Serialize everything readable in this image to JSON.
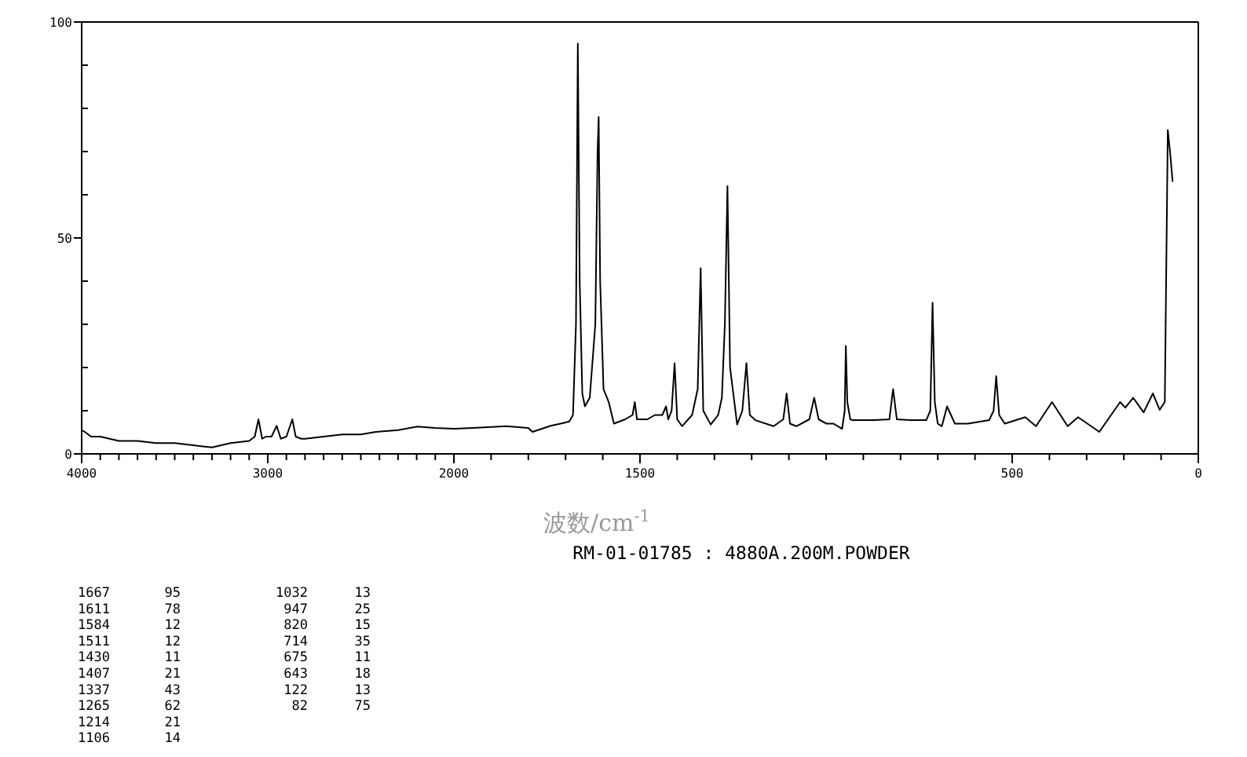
{
  "chart_data": [
    {
      "type": "line",
      "xlabel": "波数/cm$^{-1}$",
      "annotations": [
        "RM-01-01785 : 4880A.200M.POWDER",
        "1667 95",
        "1611 78",
        "1584 12",
        "1511 12",
        "1430 11",
        "1407 21",
        "1337 43",
        "1265 62",
        "1214 21",
        "1106 14",
        "1032 13",
        "947 25",
        "820 15",
        "714 35",
        "675 11",
        "643 18",
        "122 13",
        "82 75"
      ],
      "xlim": [
        4000,
        2000
      ],
      "ylim": [
        0,
        100
      ],
      "xticks": [
        {
          "value": 4000,
          "label": "4000"
        },
        {
          "value": 3900,
          "label": null
        },
        {
          "value": 3800,
          "label": null
        },
        {
          "value": 3700,
          "label": null
        },
        {
          "value": 3600,
          "label": null
        },
        {
          "value": 3500,
          "label": null
        },
        {
          "value": 3400,
          "label": null
        },
        {
          "value": 3300,
          "label": null
        },
        {
          "value": 3200,
          "label": null
        },
        {
          "value": 3100,
          "label": null
        },
        {
          "value": 3000,
          "label": "3000"
        },
        {
          "value": 2900,
          "label": null
        },
        {
          "value": 2800,
          "label": null
        },
        {
          "value": 2700,
          "label": null
        },
        {
          "value": 2600,
          "label": null
        },
        {
          "value": 2500,
          "label": null
        },
        {
          "value": 2400,
          "label": null
        },
        {
          "value": 2300,
          "label": null
        },
        {
          "value": 2200,
          "label": null
        },
        {
          "value": 2100,
          "label": null
        },
        {
          "value": 2000,
          "label": "2000"
        }
      ],
      "yticks": [
        0,
        {
          "value": 10,
          "label": null
        },
        {
          "value": 20,
          "label": null
        },
        {
          "value": 30,
          "label": null
        },
        {
          "value": 40,
          "label": null
        },
        50,
        {
          "value": 60,
          "label": null
        },
        {
          "value": 70,
          "label": null
        },
        {
          "value": 80,
          "label": null
        },
        {
          "value": 90,
          "label": null
        },
        100
      ],
      "marker": "none",
      "line_style": "solid",
      "series": [
        {
          "color": "#000000",
          "x": [
            4000,
            3980,
            3950,
            3900,
            3800,
            3700,
            3600,
            3500,
            3400,
            3300,
            3250,
            3200,
            3100,
            3070,
            3050,
            3030,
            3010,
            2980,
            2952,
            2930,
            2900,
            2868,
            2850,
            2820,
            2800,
            2700,
            2600,
            2500,
            2420,
            2300,
            2196,
            2100,
            2000
          ],
          "values": [
            5.5,
            5,
            4,
            4,
            3,
            3,
            2.5,
            2.5,
            2,
            1.5,
            2,
            2.5,
            3,
            4,
            8,
            3.5,
            4,
            4,
            6.5,
            3.5,
            4,
            8,
            4,
            3.5,
            3.5,
            4,
            4.5,
            4.5,
            5.1,
            5.5,
            6.3,
            6,
            5.8
          ]
        }
      ]
    },
    {
      "type": "line",
      "xlim": [
        2000,
        0
      ],
      "ylim": [
        0,
        100
      ],
      "tick_labels": "x",
      "xticks": [
        {
          "value": 2000,
          "label": null
        },
        {
          "value": 1900,
          "label": null
        },
        {
          "value": 1800,
          "label": null
        },
        {
          "value": 1700,
          "label": null
        },
        {
          "value": 1600,
          "label": null
        },
        {
          "value": 1500,
          "label": "1500"
        },
        {
          "value": 1400,
          "label": null
        },
        {
          "value": 1300,
          "label": null
        },
        {
          "value": 1200,
          "label": null
        },
        {
          "value": 1100,
          "label": null
        },
        {
          "value": 1000,
          "label": null
        },
        {
          "value": 900,
          "label": null
        },
        {
          "value": 800,
          "label": null
        },
        {
          "value": 700,
          "label": null
        },
        {
          "value": 600,
          "label": null
        },
        {
          "value": 500,
          "label": "500"
        },
        {
          "value": 400,
          "label": null
        },
        {
          "value": 300,
          "label": null
        },
        {
          "value": 200,
          "label": null
        },
        {
          "value": 100,
          "label": null
        },
        {
          "value": 0,
          "label": "0"
        }
      ],
      "marker": "none",
      "line_style": "solid",
      "series": [
        {
          "color": "#000000",
          "x": [
            2000,
            1950,
            1859,
            1800,
            1789,
            1740,
            1704,
            1690,
            1680,
            1672,
            1667,
            1662,
            1655,
            1648,
            1635,
            1620,
            1614,
            1611,
            1607,
            1598,
            1584,
            1570,
            1540,
            1520,
            1514,
            1508,
            1480,
            1460,
            1440,
            1430,
            1424,
            1415,
            1407,
            1400,
            1387,
            1360,
            1345,
            1337,
            1330,
            1310,
            1290,
            1280,
            1272,
            1265,
            1258,
            1239,
            1225,
            1214,
            1205,
            1190,
            1141,
            1115,
            1106,
            1097,
            1080,
            1045,
            1032,
            1020,
            999,
            980,
            957,
            950,
            947,
            943,
            935,
            929,
            872,
            830,
            820,
            810,
            774,
            731,
            720,
            714,
            708,
            700,
            689,
            675,
            654,
            619,
            562,
            550,
            543,
            535,
            520,
            465,
            436,
            393,
            351,
            323,
            266,
            210,
            196,
            175,
            147,
            122,
            104,
            90,
            82,
            76,
            69
          ],
          "values": [
            5.8,
            6,
            6.4,
            6,
            5.1,
            6.5,
            7.2,
            7.5,
            9,
            30,
            95,
            40,
            14,
            11,
            13,
            30,
            70,
            78,
            40,
            15,
            12,
            7,
            8,
            9,
            12,
            8,
            8,
            9,
            9,
            11,
            8,
            10,
            21,
            8,
            6.4,
            9,
            15,
            43,
            10,
            6.8,
            9,
            13,
            30,
            62,
            20,
            6.8,
            10,
            21,
            9,
            7.8,
            6.4,
            8,
            14,
            7,
            6.4,
            8,
            13,
            8,
            7,
            7,
            5.8,
            10,
            25,
            12,
            8,
            7.8,
            7.8,
            8,
            15,
            8,
            7.8,
            7.8,
            10,
            35,
            12,
            7,
            6.4,
            11,
            7,
            7,
            7.8,
            10,
            18,
            9,
            7,
            8.5,
            6.4,
            12,
            6.4,
            8.5,
            5.1,
            12,
            10.7,
            13,
            9.6,
            14,
            10.2,
            12,
            75,
            70,
            63
          ]
        }
      ]
    }
  ]
}
